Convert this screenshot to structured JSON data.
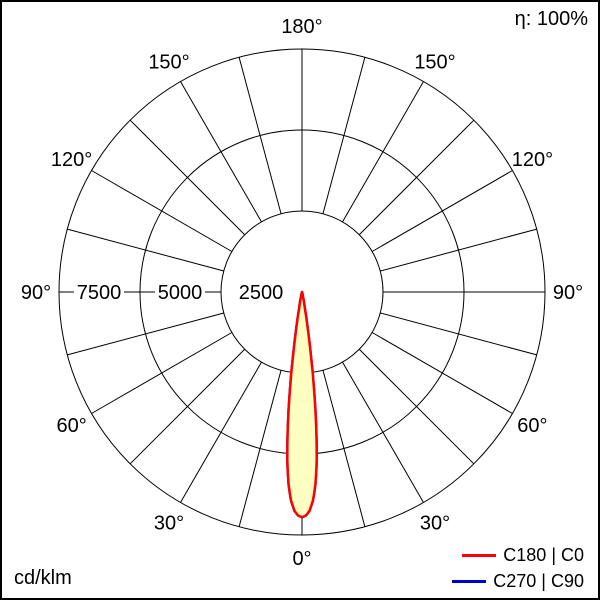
{
  "meta": {
    "efficiency_label": "η: 100%",
    "unit_label": "cd/klm"
  },
  "legend": [
    {
      "label": "C180 | C0",
      "color": "#ff0000"
    },
    {
      "label": "C270 | C90",
      "color": "#0000cc"
    }
  ],
  "chart_data": {
    "type": "line",
    "subtype": "polar-luminous-intensity-distribution",
    "unit": "cd/klm",
    "efficiency_percent": 100,
    "r_axis": {
      "ticks": [
        2500,
        5000,
        7500
      ],
      "tick_labels": [
        "2500",
        "5000",
        "7500"
      ],
      "max": 7500
    },
    "angle_axis": {
      "labels": [
        "0°",
        "30°",
        "60°",
        "90°",
        "120°",
        "150°",
        "180°"
      ],
      "labels_deg": [
        0,
        30,
        60,
        90,
        120,
        150,
        180
      ],
      "spoke_step_deg": 15,
      "zero_position": "bottom",
      "symmetric_sides": true
    },
    "series": [
      {
        "name": "C180 | C0",
        "color": "#ff0000",
        "fill": "#ffffc2",
        "gamma_deg": [
          0,
          1,
          2,
          3,
          4,
          5,
          6,
          7,
          8,
          9,
          10,
          12,
          15,
          20,
          30,
          45,
          60,
          75,
          90
        ],
        "values": [
          6950,
          6900,
          6750,
          6450,
          5950,
          5200,
          4200,
          3100,
          2000,
          1100,
          500,
          150,
          0,
          0,
          0,
          0,
          0,
          0,
          0
        ]
      },
      {
        "name": "C270 | C90",
        "color": "#0000cc",
        "fill": "none",
        "gamma_deg": [
          0,
          1,
          2,
          3,
          4,
          5,
          6,
          7,
          8,
          9,
          10,
          12,
          15,
          20,
          30,
          45,
          60,
          75,
          90
        ],
        "values": [
          6950,
          6900,
          6750,
          6450,
          5950,
          5200,
          4200,
          3100,
          2000,
          1100,
          500,
          150,
          0,
          0,
          0,
          0,
          0,
          0,
          0
        ]
      }
    ]
  }
}
